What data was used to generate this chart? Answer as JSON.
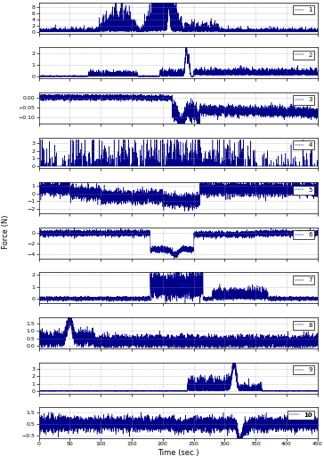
{
  "n_panels": 10,
  "xlim": [
    0,
    450
  ],
  "xticks": [
    0,
    50,
    100,
    150,
    200,
    250,
    300,
    350,
    400,
    450
  ],
  "panel_configs": [
    {
      "label": "1",
      "ylim": [
        -0.5,
        9.5
      ],
      "yticks": [
        0,
        2,
        4,
        6,
        8
      ]
    },
    {
      "label": "2",
      "ylim": [
        -0.15,
        2.5
      ],
      "yticks": [
        0,
        1,
        2
      ]
    },
    {
      "label": "3",
      "ylim": [
        -0.13,
        0.025
      ],
      "yticks": [
        0,
        -0.05,
        -0.1
      ]
    },
    {
      "label": "4",
      "ylim": [
        -0.3,
        3.8
      ],
      "yticks": [
        0,
        1,
        2,
        3
      ]
    },
    {
      "label": "5",
      "ylim": [
        -2.6,
        1.5
      ],
      "yticks": [
        1,
        0,
        -1,
        -2
      ]
    },
    {
      "label": "6",
      "ylim": [
        -4.8,
        1.0
      ],
      "yticks": [
        0,
        -2,
        -4
      ]
    },
    {
      "label": "7",
      "ylim": [
        -0.4,
        2.2
      ],
      "yticks": [
        0,
        1,
        2
      ]
    },
    {
      "label": "8",
      "ylim": [
        -0.15,
        1.9
      ],
      "yticks": [
        0,
        0.5,
        1,
        1.5
      ]
    },
    {
      "label": "9",
      "ylim": [
        -0.3,
        3.8
      ],
      "yticks": [
        0,
        1,
        2,
        3
      ]
    },
    {
      "label": "10",
      "ylim": [
        -0.75,
        1.9
      ],
      "yticks": [
        1.5,
        0.5,
        -0.5
      ]
    }
  ],
  "line_color": "#00008B",
  "grid_color": "#999999",
  "bg_color": "#ffffff",
  "ylabel": "Force (N)",
  "xlabel": "Time (sec.)",
  "seed": 42,
  "figsize": [
    3.64,
    5.22
  ],
  "dpi": 100
}
